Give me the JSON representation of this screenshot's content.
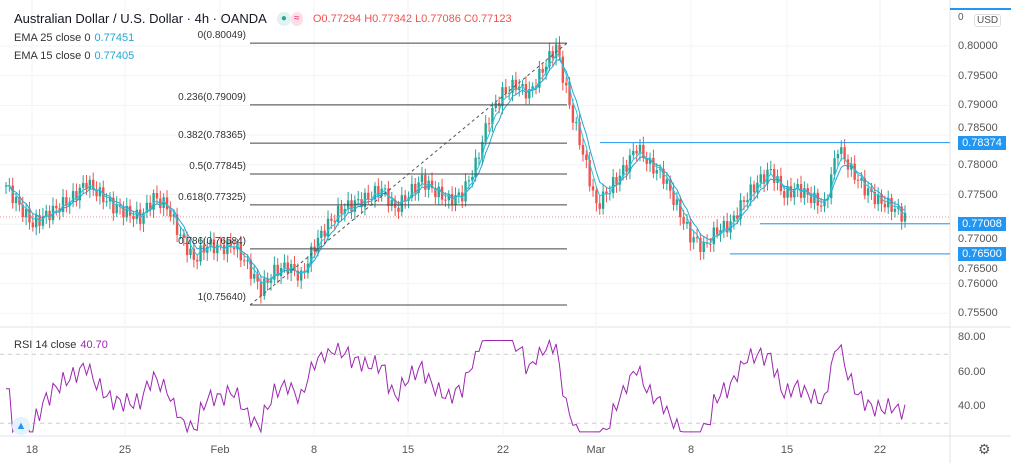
{
  "header": {
    "title": "Australian Dollar / U.S. Dollar · 4h · OANDA",
    "ohlc": "O0.77294 H0.77342 L0.77086 C0.77123"
  },
  "indicators": [
    {
      "label": "EMA 25 close 0",
      "value": "0.77451",
      "period": 25,
      "color": "#26a6d1"
    },
    {
      "label": "EMA 15 close 0",
      "value": "0.77405",
      "period": 15,
      "color": "#26c6da"
    }
  ],
  "rsi": {
    "label": "RSI 14 close",
    "value": "40.70",
    "color": "#9c27b0",
    "ticks": [
      "80.00",
      "60.00",
      "40.00"
    ]
  },
  "axis": {
    "currency": "USD",
    "zero": "0",
    "price_ticks": [
      "0.80000",
      "0.79500",
      "0.79000",
      "0.78500",
      "0.78000",
      "0.77500",
      "0.77000",
      "0.76500",
      "0.76000",
      "0.75500"
    ],
    "date_ticks": [
      "18",
      "25",
      "Feb",
      "8",
      "15",
      "22",
      "Mar",
      "8",
      "15",
      "22"
    ]
  },
  "horizontal_levels": [
    "0.78374",
    "0.77008",
    "0.76500"
  ],
  "fib_levels": [
    {
      "label": "0(0.80049)",
      "price": 0.80049
    },
    {
      "label": "0.236(0.79009)",
      "price": 0.79009
    },
    {
      "label": "0.382(0.78365)",
      "price": 0.78365
    },
    {
      "label": "0.5(0.77845)",
      "price": 0.77845
    },
    {
      "label": "0.618(0.77325)",
      "price": 0.77325
    },
    {
      "label": "0.786(0.76584)",
      "price": 0.76584
    },
    {
      "label": "1(0.75640)",
      "price": 0.7564
    }
  ],
  "chart_data": {
    "type": "candlestick",
    "ylim": [
      0.7525,
      0.8065
    ],
    "colors": {
      "up": "#26a69a",
      "down": "#ef5350"
    },
    "close_path": [
      0.7765,
      0.773,
      0.77,
      0.7715,
      0.773,
      0.7745,
      0.777,
      0.775,
      0.773,
      0.772,
      0.771,
      0.7745,
      0.773,
      0.768,
      0.764,
      0.7665,
      0.766,
      0.7665,
      0.763,
      0.759,
      0.762,
      0.763,
      0.761,
      0.7665,
      0.77,
      0.7725,
      0.7735,
      0.7745,
      0.776,
      0.7725,
      0.775,
      0.7775,
      0.7755,
      0.774,
      0.775,
      0.78,
      0.788,
      0.792,
      0.7935,
      0.792,
      0.796,
      0.8,
      0.79,
      0.782,
      0.773,
      0.776,
      0.779,
      0.783,
      0.78,
      0.778,
      0.773,
      0.768,
      0.766,
      0.769,
      0.77,
      0.774,
      0.777,
      0.779,
      0.775,
      0.776,
      0.7745,
      0.773,
      0.783,
      0.779,
      0.776,
      0.774,
      0.773,
      0.7712
    ]
  }
}
